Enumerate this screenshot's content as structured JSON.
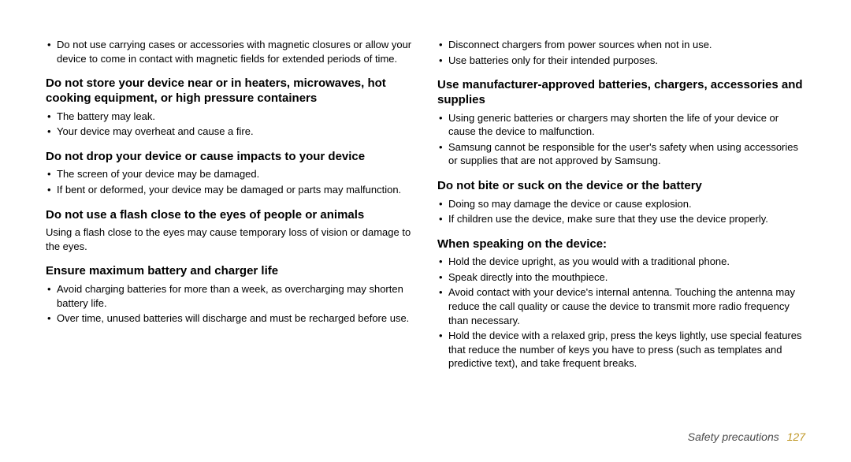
{
  "left": {
    "topBullets": [
      "Do not use carrying cases or accessories with magnetic closures or allow your device to come in contact with magnetic fields for extended periods of time."
    ],
    "h1": "Do not store your device near or in heaters, microwaves, hot cooking equipment, or high pressure containers",
    "h1_bullets": [
      "The battery may leak.",
      "Your device may overheat and cause a fire."
    ],
    "h2": "Do not drop your device or cause impacts to your device",
    "h2_bullets": [
      "The screen of your device may be damaged.",
      "If bent or deformed, your device may be damaged or parts may malfunction."
    ],
    "h3": "Do not use a flash close to the eyes of people or animals",
    "h3_para": "Using a flash close to the eyes may cause temporary loss of vision or damage to the eyes.",
    "h4": "Ensure maximum battery and charger life",
    "h4_bullets": [
      "Avoid charging batteries for more than a week, as overcharging may shorten battery life.",
      "Over time, unused batteries will discharge and must be recharged before use."
    ]
  },
  "right": {
    "topBullets": [
      "Disconnect chargers from power sources when not in use.",
      "Use batteries only for their intended purposes."
    ],
    "h1": "Use manufacturer-approved batteries, chargers, accessories and supplies",
    "h1_bullets": [
      "Using generic batteries or chargers may shorten the life of your device or cause the device to malfunction.",
      "Samsung cannot be responsible for the user's safety when using accessories or supplies that are not approved by Samsung."
    ],
    "h2": "Do not bite or suck on the device or the battery",
    "h2_bullets": [
      "Doing so may damage the device or cause explosion.",
      "If children use the device, make sure that they use the device properly."
    ],
    "h3": "When speaking on the device:",
    "h3_bullets": [
      "Hold the device upright, as you would with a traditional phone.",
      "Speak directly into the mouthpiece.",
      "Avoid contact with your device's internal antenna. Touching the antenna may reduce the call quality or cause the device to transmit more radio frequency than necessary.",
      "Hold the device with a relaxed grip, press the keys lightly, use special features that reduce the number of keys you have to press (such as templates and predictive text), and take frequent breaks."
    ]
  },
  "footer": {
    "label": "Safety precautions",
    "page": "127"
  },
  "colors": {
    "text": "#000000",
    "footerLabel": "#4a4a4a",
    "pageNumber": "#c09828",
    "background": "#ffffff"
  },
  "fontSizes": {
    "heading": 15,
    "body": 13,
    "footer": 14
  }
}
